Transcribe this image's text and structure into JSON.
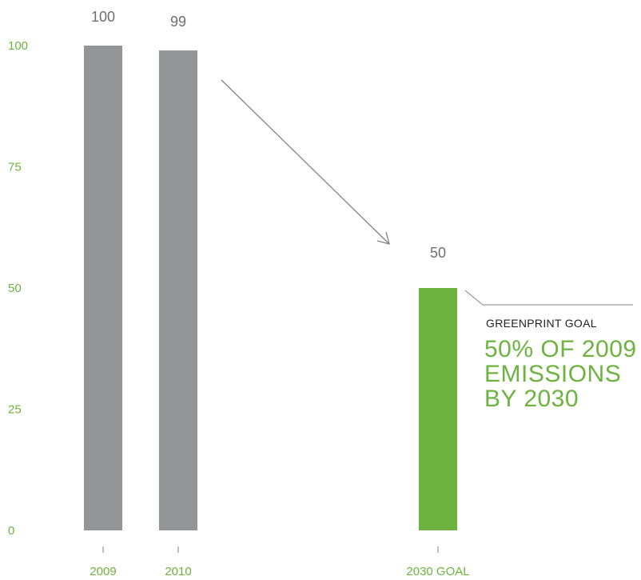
{
  "chart_data": {
    "type": "bar",
    "categories": [
      "2009",
      "2010",
      "2030 GOAL"
    ],
    "values": [
      100,
      99,
      50
    ],
    "value_labels": [
      "100",
      "99",
      "50"
    ],
    "ylim": [
      0,
      100
    ],
    "yticks": [
      "0",
      "25",
      "50",
      "75",
      "100"
    ],
    "grid": false,
    "title": "",
    "xlabel": "",
    "ylabel": ""
  },
  "colors": {
    "actual_bar": "#939598",
    "goal_bar": "#6db33f",
    "tick_text": "#6db33f",
    "value_text": "#6d6e71",
    "arrow": "#808285"
  },
  "annotation": {
    "label": "GREENPRINT GOAL",
    "lines": [
      "50% OF 2009",
      "EMISSIONS",
      "BY 2030"
    ]
  }
}
